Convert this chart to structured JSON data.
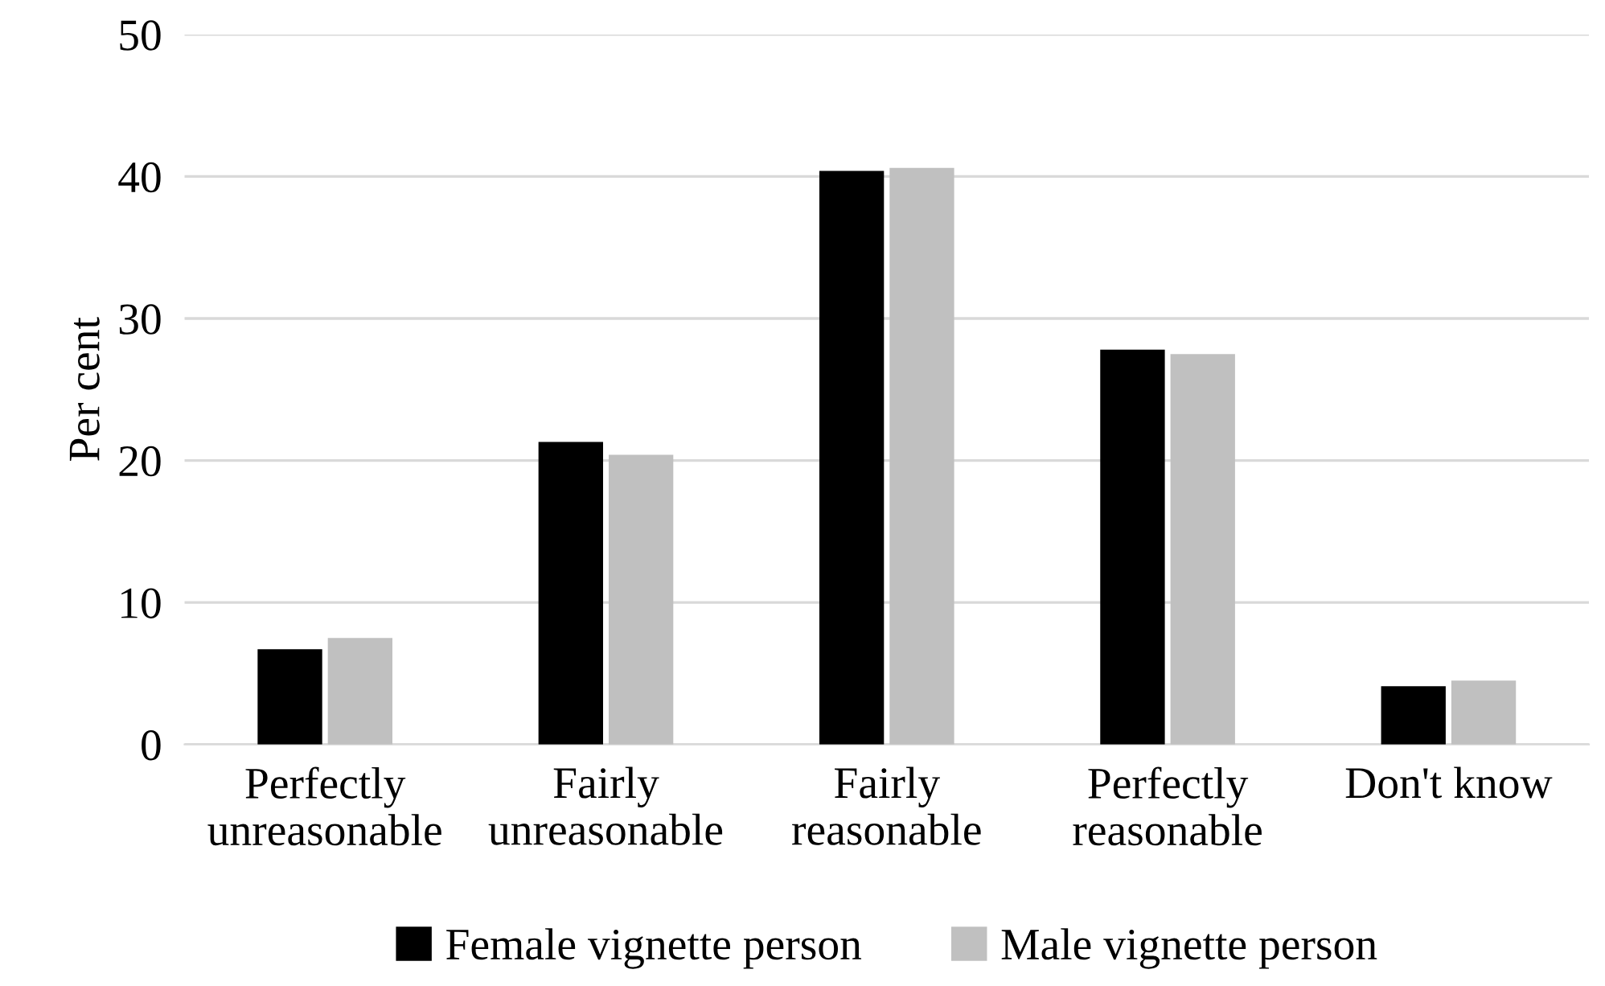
{
  "chart_data": {
    "type": "bar",
    "ylabel": "Per cent",
    "categories": [
      "Perfectly\nunreasonable",
      "Fairly\nunreasonable",
      "Fairly\nreasonable",
      "Perfectly\nreasonable",
      "Don't know"
    ],
    "series": [
      {
        "name": "Female vignette person",
        "color": "#000000",
        "values": [
          6.7,
          21.3,
          40.4,
          27.8,
          4.1
        ]
      },
      {
        "name": "Male vignette person",
        "color": "#c0c0c0",
        "values": [
          7.5,
          20.4,
          40.6,
          27.5,
          4.5
        ]
      }
    ],
    "ylim": [
      0,
      50
    ],
    "yticks": [
      0,
      10,
      20,
      30,
      40,
      50
    ],
    "grid": "y",
    "legend": "bottom"
  }
}
